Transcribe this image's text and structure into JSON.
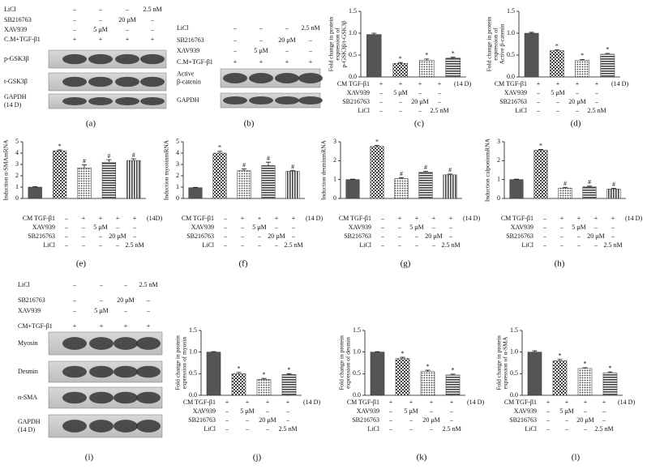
{
  "blots": [
    {
      "panel": "(a)",
      "treatments": [
        {
          "name": "LiCl",
          "cells": [
            "–",
            "–",
            "–",
            "2.5 nM"
          ]
        },
        {
          "name": "SB216763",
          "cells": [
            "–",
            "–",
            "20 μM",
            "–"
          ]
        },
        {
          "name": "XAV939",
          "cells": [
            "–",
            "5 μM",
            "–",
            "–"
          ]
        },
        {
          "name": "C.M+TGF-β1",
          "cells": [
            "+",
            "+",
            "+",
            "+"
          ]
        }
      ],
      "bands": [
        [
          "p-GSK3β"
        ],
        [
          "t-GSK3β"
        ],
        [
          "GAPDH",
          "(14 D)"
        ]
      ]
    },
    {
      "panel": "(b)",
      "treatments": [
        {
          "name": "LiCl",
          "cells": [
            "–",
            "–",
            "–",
            "2.5 nM"
          ]
        },
        {
          "name": "SB216763",
          "cells": [
            "–",
            "–",
            "20 μM",
            "–"
          ]
        },
        {
          "name": "XAV939",
          "cells": [
            "–",
            "5 μM",
            "–",
            "–"
          ]
        },
        {
          "name": "C.M+TGF-β1",
          "cells": [
            "+",
            "+",
            "+",
            "+"
          ]
        }
      ],
      "bands": [
        [
          "Active",
          "β-catenin"
        ],
        [
          "GAPDH"
        ]
      ]
    },
    {
      "panel": "(i)",
      "treatments": [
        {
          "name": "LiCl",
          "cells": [
            "–",
            "–",
            "–",
            "2.5 nM"
          ]
        },
        {
          "name": "SB216763",
          "cells": [
            "–",
            "–",
            "20 μM",
            "–"
          ]
        },
        {
          "name": "XAV939",
          "cells": [
            "–",
            "5 μM",
            "–",
            "–"
          ]
        },
        {
          "name": "CM+TGF-β1",
          "cells": [
            "+",
            "+",
            "+",
            "+"
          ]
        }
      ],
      "bands": [
        [
          "Myosin"
        ],
        [
          "Desmin"
        ],
        [
          "α-SMA"
        ],
        [
          "GAPDH",
          "(14 D)"
        ]
      ]
    }
  ],
  "chart_data": [
    {
      "type": "bar",
      "panel": "(c)",
      "color": "#555555",
      "y_label": [
        "Fold change in protein",
        "expression of",
        "p-GSK3β/t-GSK3β"
      ],
      "values": [
        0.97,
        0.31,
        0.38,
        0.43
      ],
      "errors": [
        0.03,
        0.02,
        0.03,
        0.02
      ],
      "markers": [
        null,
        "*",
        "*",
        "*"
      ],
      "ylim": [
        0,
        1.5
      ],
      "yticks": [
        {
          "value": 0,
          "label": "0.0"
        },
        {
          "value": 0.5,
          "label": "0.5"
        },
        {
          "value": 1,
          "label": "1.0"
        },
        {
          "value": 1.5,
          "label": "1.5"
        }
      ],
      "treatments": [
        {
          "name": "CM TGF-β1",
          "cells": [
            "+",
            "+",
            "+",
            "+"
          ],
          "suffix": "(14 D)"
        },
        {
          "name": "XAV939",
          "cells": [
            "–",
            "5 μM",
            "–",
            "–"
          ]
        },
        {
          "name": "SB216763",
          "cells": [
            "–",
            "–",
            "20 μM",
            "–"
          ]
        },
        {
          "name": "LiCl",
          "cells": [
            "–",
            "–",
            "–",
            "2.5 nM"
          ]
        }
      ]
    },
    {
      "type": "bar",
      "panel": "(d)",
      "color": "#555555",
      "y_label": [
        "Fold change in protein",
        "expression of",
        "Active β-catenin"
      ],
      "values": [
        1.0,
        0.6,
        0.38,
        0.52
      ],
      "errors": [
        0.02,
        0.02,
        0.02,
        0.02
      ],
      "markers": [
        null,
        "*",
        "*",
        "*"
      ],
      "ylim": [
        0,
        1.5
      ],
      "yticks": [
        {
          "value": 0,
          "label": "0.0"
        },
        {
          "value": 0.5,
          "label": "0.5"
        },
        {
          "value": 1,
          "label": "1.0"
        },
        {
          "value": 1.5,
          "label": "1.5"
        }
      ],
      "treatments": [
        {
          "name": "CM TGF-β1",
          "cells": [
            "+",
            "+",
            "+",
            "+"
          ],
          "suffix": "(14 D)"
        },
        {
          "name": "XAV939",
          "cells": [
            "–",
            "5 μM",
            "–",
            "–"
          ]
        },
        {
          "name": "SB216763",
          "cells": [
            "–",
            "–",
            "20 μM",
            "–"
          ]
        },
        {
          "name": "LiCl",
          "cells": [
            "–",
            "–",
            "–",
            "2.5 nM"
          ]
        }
      ]
    },
    {
      "type": "bar",
      "panel": "(e)",
      "color": "#555555",
      "y_label": [
        "Induction α-SMAmRNA"
      ],
      "values": [
        1.0,
        4.2,
        2.7,
        3.2,
        3.35
      ],
      "errors": [
        0.03,
        0.08,
        0.25,
        0.22,
        0.15
      ],
      "markers": [
        null,
        "*",
        "#",
        "#",
        "#"
      ],
      "ylim": [
        0,
        5
      ],
      "yticks": [
        0,
        1,
        2,
        3,
        4,
        5
      ],
      "treatments": [
        {
          "name": "CM TGF-β1",
          "cells": [
            "–",
            "+",
            "+",
            "+",
            "+"
          ],
          "suffix": "(14D)"
        },
        {
          "name": "XAV939",
          "cells": [
            "–",
            "–",
            "5 μM",
            "–",
            "–"
          ]
        },
        {
          "name": "SB216763",
          "cells": [
            "–",
            "–",
            "–",
            "20 μM",
            "–"
          ]
        },
        {
          "name": "LiCl",
          "cells": [
            "–",
            "–",
            "–",
            "–",
            "2.5 nM"
          ]
        }
      ]
    },
    {
      "type": "bar",
      "panel": "(f)",
      "color": "#555555",
      "y_label": [
        "Induction myosinmRNA"
      ],
      "values": [
        0.95,
        4.0,
        2.45,
        2.9,
        2.4
      ],
      "errors": [
        0.03,
        0.15,
        0.15,
        0.3,
        0.05
      ],
      "markers": [
        null,
        "*",
        "#",
        "#",
        "#"
      ],
      "ylim": [
        0,
        5
      ],
      "yticks": [
        0,
        1,
        2,
        3,
        4,
        5
      ],
      "treatments": [
        {
          "name": "CM TGF-β1",
          "cells": [
            "–",
            "+",
            "+",
            "+",
            "+"
          ],
          "suffix": "(14 D)"
        },
        {
          "name": "XAV939",
          "cells": [
            "–",
            "–",
            "5 μM",
            "–",
            "–"
          ]
        },
        {
          "name": "SB216763",
          "cells": [
            "–",
            "–",
            "–",
            "20 μM",
            "–"
          ]
        },
        {
          "name": "LiCl",
          "cells": [
            "–",
            "–",
            "–",
            "–",
            "2.5 nM"
          ]
        }
      ]
    },
    {
      "type": "bar",
      "panel": "(g)",
      "color": "#555555",
      "y_label": [
        "Induction desminmRNA"
      ],
      "values": [
        1.0,
        2.75,
        1.05,
        1.4,
        1.25
      ],
      "errors": [
        0.02,
        0.05,
        0.05,
        0.04,
        0.04
      ],
      "markers": [
        null,
        "*",
        "#",
        "#",
        "#"
      ],
      "ylim": [
        0,
        3
      ],
      "yticks": [
        0,
        1,
        2,
        3
      ],
      "treatments": [
        {
          "name": "CM TGF-β1",
          "cells": [
            "–",
            "+",
            "+",
            "+",
            "+"
          ],
          "suffix": "(14 D)"
        },
        {
          "name": "XAV939",
          "cells": [
            "–",
            "–",
            "5 μM",
            "–",
            "–"
          ]
        },
        {
          "name": "SB216763",
          "cells": [
            "–",
            "–",
            "–",
            "20 μM",
            "–"
          ]
        },
        {
          "name": "LiCl",
          "cells": [
            "–",
            "–",
            "–",
            "–",
            "2.5 nM"
          ]
        }
      ]
    },
    {
      "type": "bar",
      "panel": "(h)",
      "color": "#555555",
      "y_label": [
        "Induction calponinmRNA"
      ],
      "values": [
        1.0,
        2.55,
        0.55,
        0.62,
        0.5
      ],
      "errors": [
        0.02,
        0.04,
        0.04,
        0.03,
        0.04
      ],
      "markers": [
        null,
        "*",
        "#",
        "#",
        "#"
      ],
      "ylim": [
        0,
        3
      ],
      "yticks": [
        0,
        1,
        2,
        3
      ],
      "treatments": [
        {
          "name": "CM TGF-β1",
          "cells": [
            "–",
            "+",
            "+",
            "+",
            "+"
          ],
          "suffix": "(14 D)"
        },
        {
          "name": "XAV939",
          "cells": [
            "–",
            "–",
            "5 μM",
            "–",
            "–"
          ]
        },
        {
          "name": "SB216763",
          "cells": [
            "–",
            "–",
            "–",
            "20 μM",
            "–"
          ]
        },
        {
          "name": "LiCl",
          "cells": [
            "–",
            "–",
            "–",
            "–",
            "2.5 nM"
          ]
        }
      ]
    },
    {
      "type": "bar",
      "panel": "(j)",
      "color": "#555555",
      "y_label": [
        "Fold change in protein",
        "expression of myosin"
      ],
      "values": [
        1.0,
        0.5,
        0.37,
        0.48
      ],
      "errors": [
        0.01,
        0.03,
        0.02,
        0.02
      ],
      "markers": [
        null,
        "*",
        "*",
        "*"
      ],
      "ylim": [
        0,
        1.5
      ],
      "yticks": [
        {
          "value": 0,
          "label": "0.0"
        },
        {
          "value": 0.5,
          "label": "0.5"
        },
        {
          "value": 1,
          "label": "1.0"
        },
        {
          "value": 1.5,
          "label": "1.5"
        }
      ],
      "treatments": [
        {
          "name": "CM TGF-β1",
          "cells": [
            "+",
            "+",
            "+",
            "+"
          ],
          "suffix": "(14 D)"
        },
        {
          "name": "XAV939",
          "cells": [
            "–",
            "5 μM",
            "–",
            "–"
          ]
        },
        {
          "name": "SB216763",
          "cells": [
            "–",
            "–",
            "20 μM",
            "–"
          ]
        },
        {
          "name": "LiCl",
          "cells": [
            "–",
            "–",
            "–",
            "2.5 nM"
          ]
        }
      ]
    },
    {
      "type": "bar",
      "panel": "(k)",
      "color": "#555555",
      "y_label": [
        "Fold change in protein",
        "expression of desmin"
      ],
      "values": [
        1.0,
        0.85,
        0.55,
        0.47
      ],
      "errors": [
        0.01,
        0.03,
        0.03,
        0.02
      ],
      "markers": [
        null,
        "*",
        "*",
        "*"
      ],
      "ylim": [
        0,
        1.5
      ],
      "yticks": [
        {
          "value": 0,
          "label": "0.0"
        },
        {
          "value": 0.5,
          "label": "0.5"
        },
        {
          "value": 1,
          "label": "1.0"
        },
        {
          "value": 1.5,
          "label": "1.5"
        }
      ],
      "treatments": [
        {
          "name": "CM TGF-β1",
          "cells": [
            "+",
            "+",
            "+",
            "+"
          ],
          "suffix": "(14 D)"
        },
        {
          "name": "XAV939",
          "cells": [
            "–",
            "5 μM",
            "–",
            "–"
          ]
        },
        {
          "name": "SB216763",
          "cells": [
            "–",
            "–",
            "20 μM",
            "–"
          ]
        },
        {
          "name": "LiCl",
          "cells": [
            "–",
            "–",
            "–",
            "2.5 nM"
          ]
        }
      ]
    },
    {
      "type": "bar",
      "panel": "(l)",
      "color": "#555555",
      "y_label": [
        "Fold change in protein",
        "expression of α-SMA"
      ],
      "values": [
        1.0,
        0.8,
        0.62,
        0.52
      ],
      "errors": [
        0.03,
        0.03,
        0.02,
        0.02
      ],
      "markers": [
        null,
        "*",
        "*",
        "*"
      ],
      "ylim": [
        0,
        1.5
      ],
      "yticks": [
        {
          "value": 0,
          "label": "0.0"
        },
        {
          "value": 0.5,
          "label": "0.5"
        },
        {
          "value": 1,
          "label": "1.0"
        },
        {
          "value": 1.5,
          "label": "1.5"
        }
      ],
      "treatments": [
        {
          "name": "CM TGF-β1",
          "cells": [
            "+",
            "+",
            "+",
            "+"
          ],
          "suffix": "(14 D)"
        },
        {
          "name": "XAV939",
          "cells": [
            "–",
            "5 μM",
            "–",
            "–"
          ]
        },
        {
          "name": "SB216763",
          "cells": [
            "–",
            "–",
            "20 μM",
            "–"
          ]
        },
        {
          "name": "LiCl",
          "cells": [
            "–",
            "–",
            "–",
            "2.5 nM"
          ]
        }
      ]
    }
  ]
}
